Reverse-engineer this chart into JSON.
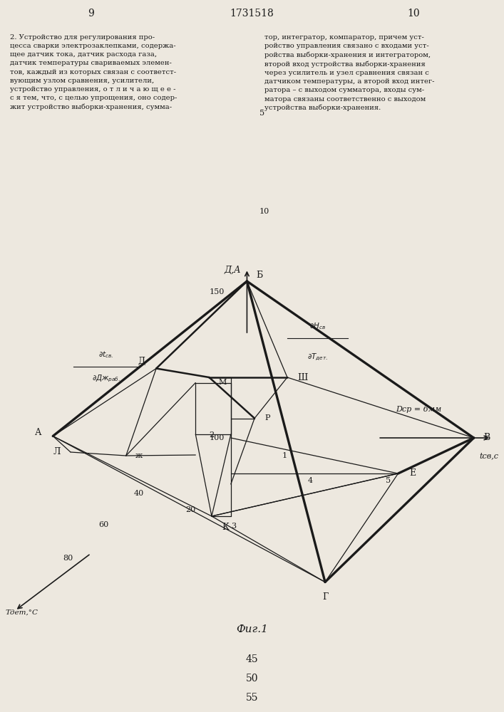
{
  "page_left": "9",
  "page_center": "1731518",
  "page_right": "10",
  "background_color": "#ede8df",
  "line_color": "#1a1a1a",
  "numbers_bottom": [
    "45",
    "50",
    "55"
  ]
}
